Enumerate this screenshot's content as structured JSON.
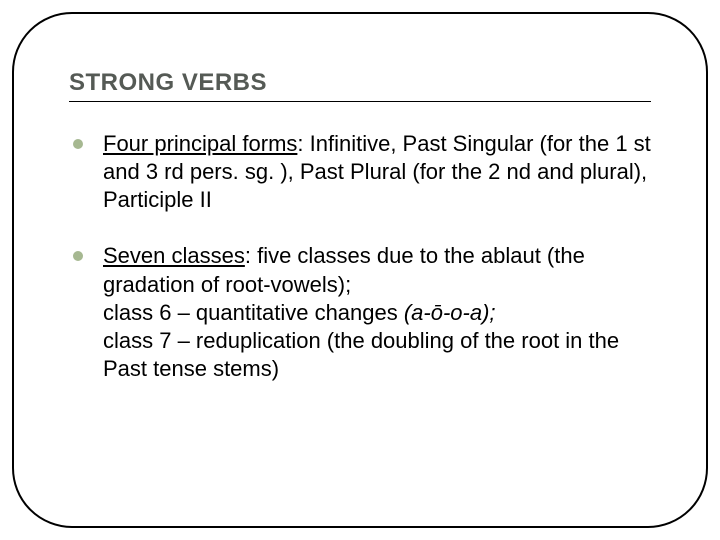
{
  "slide": {
    "title": "STRONG VERBS",
    "frame_border_color": "#000000",
    "frame_border_radius": 60,
    "title_color": "#555a55",
    "title_fontsize": 24,
    "body_fontsize": 22,
    "bullet_color": "#a6b891",
    "bullets": [
      {
        "lead_underlined": "Four principal forms",
        "rest": ": Infinitive, Past Singular (for the 1 st and 3 rd pers. sg. ), Past Plural (for the 2 nd and plural), Participle II"
      },
      {
        "lead_underlined": "Seven classes",
        "rest": ": five classes due to the ablaut (the gradation of root-vowels);",
        "line2_pre": " class 6 – quantitative changes ",
        "line2_italic": "(a-ō-o-a);",
        "line3": " class 7 – reduplication (the doubling of the root in the Past tense stems)"
      }
    ]
  }
}
